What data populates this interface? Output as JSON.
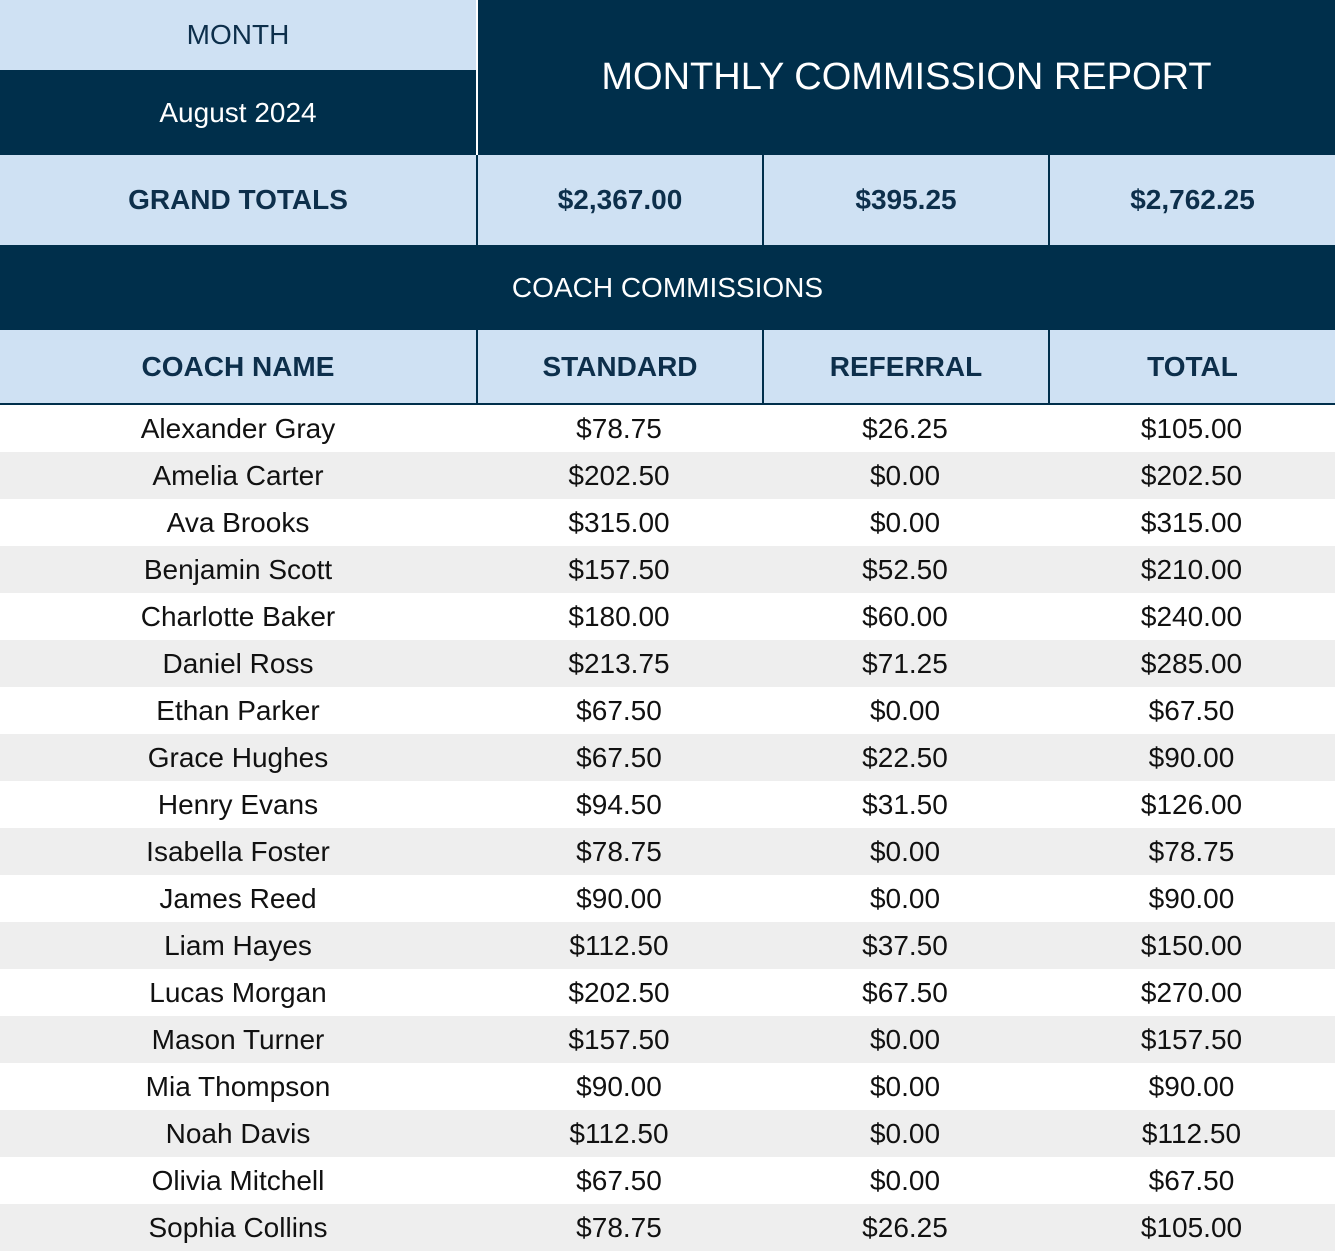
{
  "month_label": "MONTH",
  "month_value": "August 2024",
  "report_title": "MONTHLY COMMISSION REPORT",
  "grand_totals": {
    "label": "GRAND TOTALS",
    "standard": "$2,367.00",
    "referral": "$395.25",
    "total": "$2,762.25"
  },
  "section_title": "COACH COMMISSIONS",
  "columns": [
    "COACH NAME",
    "STANDARD",
    "REFERRAL",
    "TOTAL"
  ],
  "rows": [
    [
      "Alexander Gray",
      "$78.75",
      "$26.25",
      "$105.00"
    ],
    [
      "Amelia Carter",
      "$202.50",
      "$0.00",
      "$202.50"
    ],
    [
      "Ava Brooks",
      "$315.00",
      "$0.00",
      "$315.00"
    ],
    [
      "Benjamin Scott",
      "$157.50",
      "$52.50",
      "$210.00"
    ],
    [
      "Charlotte Baker",
      "$180.00",
      "$60.00",
      "$240.00"
    ],
    [
      "Daniel Ross",
      "$213.75",
      "$71.25",
      "$285.00"
    ],
    [
      "Ethan Parker",
      "$67.50",
      "$0.00",
      "$67.50"
    ],
    [
      "Grace Hughes",
      "$67.50",
      "$22.50",
      "$90.00"
    ],
    [
      "Henry Evans",
      "$94.50",
      "$31.50",
      "$126.00"
    ],
    [
      "Isabella Foster",
      "$78.75",
      "$0.00",
      "$78.75"
    ],
    [
      "James Reed",
      "$90.00",
      "$0.00",
      "$90.00"
    ],
    [
      "Liam Hayes",
      "$112.50",
      "$37.50",
      "$150.00"
    ],
    [
      "Lucas Morgan",
      "$202.50",
      "$67.50",
      "$270.00"
    ],
    [
      "Mason Turner",
      "$157.50",
      "$0.00",
      "$157.50"
    ],
    [
      "Mia Thompson",
      "$90.00",
      "$0.00",
      "$90.00"
    ],
    [
      "Noah Davis",
      "$112.50",
      "$0.00",
      "$112.50"
    ],
    [
      "Olivia Mitchell",
      "$67.50",
      "$0.00",
      "$67.50"
    ],
    [
      "Sophia Collins",
      "$78.75",
      "$26.25",
      "$105.00"
    ]
  ],
  "colors": {
    "dark_navy": "#002f4b",
    "light_blue": "#cfe1f3",
    "alt_row": "#eeeeee"
  }
}
